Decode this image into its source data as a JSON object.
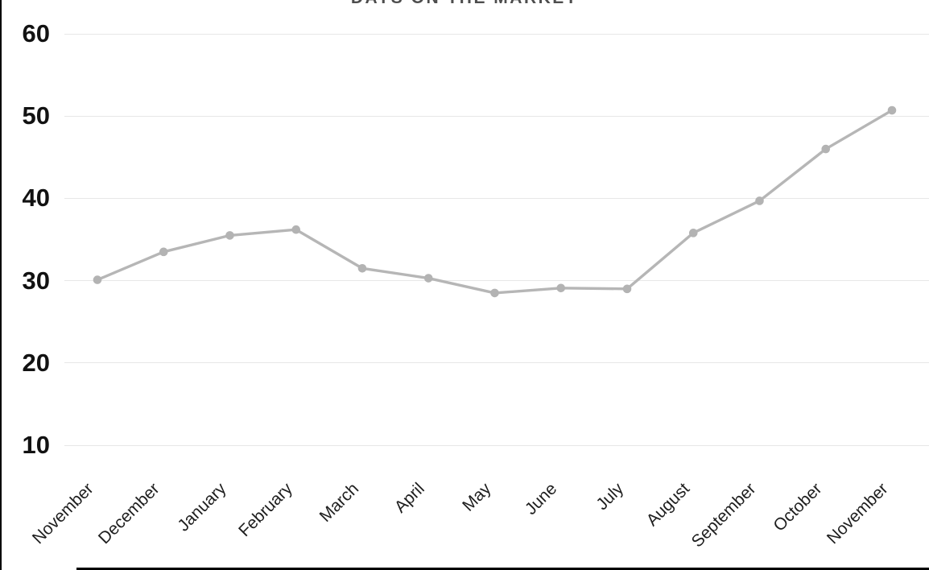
{
  "title": "DAYS ON THE MARKET",
  "colors": {
    "line": "#b6b6b6",
    "marker": "#b3b3b3",
    "gridline": "#e7e7e7",
    "axis_border": "#000000",
    "y_label_text": "#121212",
    "x_label_text": "#1e1e1e",
    "title_text": "#4d4d4d"
  },
  "y_axis": {
    "ticks": [
      "60",
      "50",
      "40",
      "30",
      "20",
      "10"
    ]
  },
  "chart_data": {
    "type": "line",
    "title": "DAYS ON THE MARKET",
    "categories": [
      "November",
      "December",
      "January",
      "February",
      "March",
      "April",
      "May",
      "June",
      "July",
      "August",
      "September",
      "October",
      "November"
    ],
    "series": [
      {
        "name": "Days on the market",
        "values": [
          30.1,
          33.5,
          35.5,
          36.2,
          31.5,
          30.3,
          28.5,
          29.1,
          29.0,
          35.8,
          39.7,
          46.0,
          50.7
        ]
      }
    ],
    "xlabel": "",
    "ylabel": "",
    "yticks": [
      10,
      20,
      30,
      40,
      50,
      60
    ],
    "ylim": [
      5.5,
      64
    ],
    "grid": true,
    "legend": false,
    "marker": "circle",
    "x_label_rotation_deg": -45
  }
}
